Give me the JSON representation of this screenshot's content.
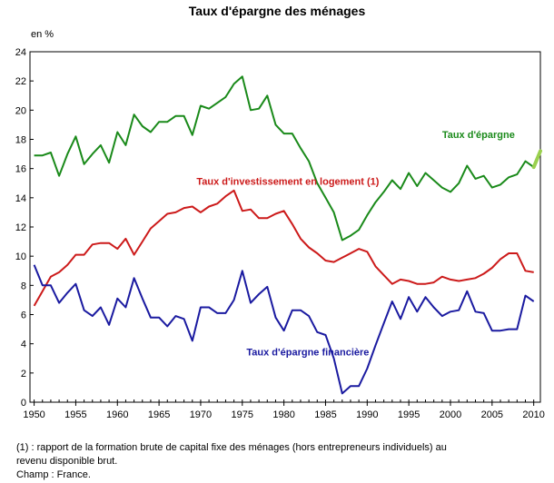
{
  "chart_data": {
    "type": "line",
    "title": "Taux d'épargne des ménages",
    "ylabel": "en %",
    "xlabel": "",
    "xlim": [
      1949.5,
      2010.8
    ],
    "ylim": [
      0,
      24
    ],
    "x_ticks": [
      1950,
      1955,
      1960,
      1965,
      1970,
      1975,
      1980,
      1985,
      1990,
      1995,
      2000,
      2005,
      2010
    ],
    "y_ticks": [
      0,
      2,
      4,
      6,
      8,
      10,
      12,
      14,
      16,
      18,
      20,
      22,
      24
    ],
    "grid": false,
    "legend": "inline labels",
    "x": [
      1950,
      1951,
      1952,
      1953,
      1954,
      1955,
      1956,
      1957,
      1958,
      1959,
      1960,
      1961,
      1962,
      1963,
      1964,
      1965,
      1966,
      1967,
      1968,
      1969,
      1970,
      1971,
      1972,
      1973,
      1974,
      1975,
      1976,
      1977,
      1978,
      1979,
      1980,
      1981,
      1982,
      1983,
      1984,
      1985,
      1986,
      1987,
      1988,
      1989,
      1990,
      1991,
      1992,
      1993,
      1994,
      1995,
      1996,
      1997,
      1998,
      1999,
      2000,
      2001,
      2002,
      2003,
      2004,
      2005,
      2006,
      2007,
      2008,
      2009,
      2010
    ],
    "series": [
      {
        "name": "Taux d'épargne",
        "color": "#1a8a1a",
        "values": [
          16.9,
          16.9,
          17.1,
          15.5,
          17.0,
          18.2,
          16.3,
          17.0,
          17.6,
          16.4,
          18.5,
          17.6,
          19.7,
          18.9,
          18.5,
          19.2,
          19.2,
          19.6,
          19.6,
          18.3,
          20.3,
          20.1,
          20.5,
          20.9,
          21.8,
          22.3,
          20.0,
          20.1,
          21.0,
          19.0,
          18.4,
          18.4,
          17.4,
          16.5,
          15.0,
          14.0,
          13.0,
          11.1,
          11.4,
          11.8,
          12.8,
          13.7,
          14.4,
          15.2,
          14.6,
          15.7,
          14.8,
          15.7,
          15.2,
          14.7,
          14.4,
          15.0,
          16.2,
          15.3,
          15.5,
          14.7,
          14.9,
          15.4,
          15.6,
          16.5,
          16.1
        ]
      },
      {
        "name": "Taux d'investissement en logement (1)",
        "color": "#cc1a1a",
        "values": [
          6.6,
          7.6,
          8.6,
          8.9,
          9.4,
          10.1,
          10.1,
          10.8,
          10.9,
          10.9,
          10.5,
          11.2,
          10.1,
          11.0,
          11.9,
          12.4,
          12.9,
          13.0,
          13.3,
          13.4,
          13.0,
          13.4,
          13.6,
          14.1,
          14.5,
          13.1,
          13.2,
          12.6,
          12.6,
          12.9,
          13.1,
          12.2,
          11.2,
          10.6,
          10.2,
          9.7,
          9.6,
          9.9,
          10.2,
          10.5,
          10.3,
          9.3,
          8.7,
          8.1,
          8.4,
          8.3,
          8.1,
          8.1,
          8.2,
          8.6,
          8.4,
          8.3,
          8.4,
          8.5,
          8.8,
          9.2,
          9.8,
          10.2,
          10.2,
          9.0,
          8.9
        ]
      },
      {
        "name": "Taux d'épargne financière",
        "color": "#1a1aa0",
        "values": [
          9.4,
          8.0,
          8.0,
          6.8,
          7.5,
          8.1,
          6.3,
          5.9,
          6.5,
          5.3,
          7.1,
          6.5,
          8.5,
          7.1,
          5.8,
          5.8,
          5.2,
          5.9,
          5.7,
          4.2,
          6.5,
          6.5,
          6.1,
          6.1,
          7.0,
          9.0,
          6.8,
          7.4,
          7.9,
          5.8,
          4.9,
          6.3,
          6.3,
          5.9,
          4.8,
          4.6,
          3.0,
          0.6,
          1.1,
          1.1,
          2.3,
          3.9,
          5.4,
          6.9,
          5.7,
          7.2,
          6.2,
          7.2,
          6.5,
          5.9,
          6.2,
          6.3,
          7.6,
          6.2,
          6.1,
          4.9,
          4.9,
          5.0,
          5.0,
          7.3,
          6.9
        ]
      }
    ],
    "extension": {
      "color": "#9ad04f",
      "x": [
        2010,
        2010.8
      ],
      "values": [
        16.1,
        17.2
      ]
    },
    "annotations": [
      {
        "text": "Taux d'épargne",
        "series": 0,
        "x": 1999,
        "y": 18.1
      },
      {
        "text": "Taux d'investissement en logement (1)",
        "series": 1,
        "x": 1969.5,
        "y": 14.9
      },
      {
        "text": "Taux d'épargne financière",
        "series": 2,
        "x": 1975.5,
        "y": 3.2
      }
    ]
  },
  "notes": {
    "line1": "(1) : rapport de la formation brute de capital fixe des ménages (hors entrepreneurs individuels) au",
    "line2": "revenu disponible brut.",
    "line3": "Champ : France."
  }
}
